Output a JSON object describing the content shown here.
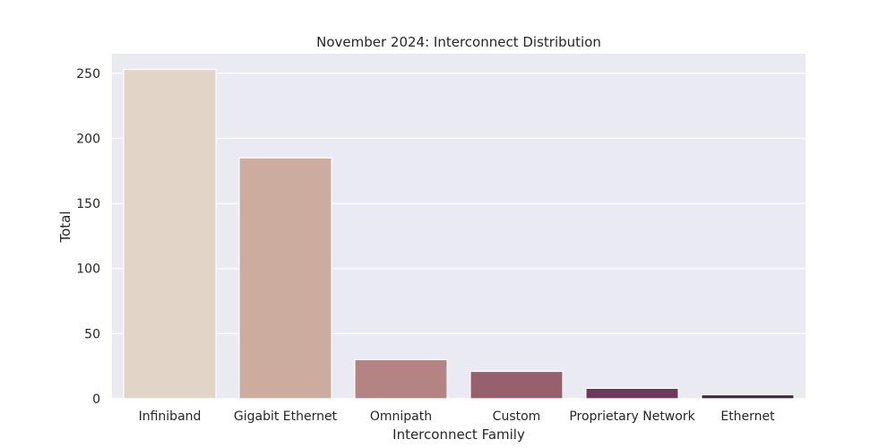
{
  "chart_data": {
    "type": "bar",
    "title": "November 2024: Interconnect Distribution",
    "xlabel": "Interconnect Family",
    "ylabel": "Total",
    "categories": [
      "Infiniband",
      "Gigabit Ethernet",
      "Omnipath",
      "Custom",
      "Proprietary Network",
      "Ethernet"
    ],
    "values": [
      253,
      185,
      30,
      21,
      8,
      3
    ],
    "colors": [
      "#e2d5c7",
      "#cbac9f",
      "#b48482",
      "#985f6f",
      "#6c3a5b",
      "#3d2040"
    ],
    "ylim": [
      0,
      265
    ],
    "yticks": [
      0,
      50,
      100,
      150,
      200,
      250
    ],
    "grid": true,
    "background": "#eaeaf2",
    "gridColor": "#ffffff"
  }
}
